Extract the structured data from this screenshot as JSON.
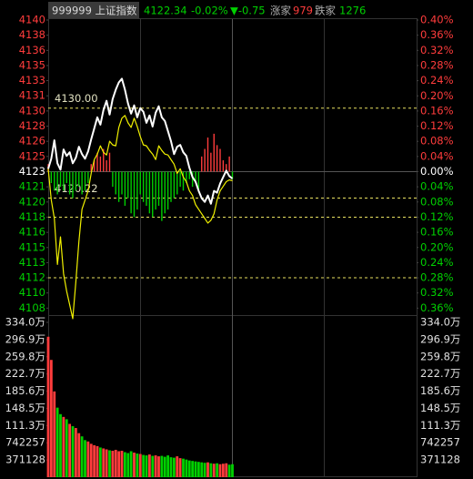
{
  "chart_data": {
    "type": "intraday",
    "header": {
      "title": "999999 上证指数",
      "last": 4122.34,
      "change_pct": "-0.02%",
      "change": "▼-0.75",
      "up_label": "涨家",
      "up_count": 979,
      "down_label": "跌家",
      "down_count": 1276
    },
    "xlim": [
      0,
      240
    ],
    "x": [
      0,
      2,
      4,
      6,
      8,
      10,
      12,
      14,
      16,
      18,
      20,
      22,
      24,
      26,
      28,
      30,
      32,
      34,
      36,
      38,
      40,
      42,
      44,
      46,
      48,
      50,
      52,
      54,
      56,
      58,
      60,
      62,
      64,
      66,
      68,
      70,
      72,
      74,
      76,
      78,
      80,
      82,
      84,
      86,
      88,
      90,
      92,
      94,
      96,
      98,
      100,
      102,
      104,
      106,
      108,
      110,
      112,
      114,
      116,
      118,
      120
    ],
    "ylim": [
      4106.6,
      4139.58
    ],
    "yticks": [
      {
        "value": 4139.58,
        "label": "4140"
      },
      {
        "value": 4137.93,
        "label": "4138"
      },
      {
        "value": 4136.28,
        "label": "4136"
      },
      {
        "value": 4134.63,
        "label": "4135"
      },
      {
        "value": 4132.99,
        "label": "4133"
      },
      {
        "value": 4131.34,
        "label": "4131"
      },
      {
        "value": 4129.69,
        "label": "4130"
      },
      {
        "value": 4128.04,
        "label": "4128"
      },
      {
        "value": 4126.39,
        "label": "4126"
      },
      {
        "value": 4124.74,
        "label": "4125"
      },
      {
        "value": 4123.09,
        "label": "4123"
      },
      {
        "value": 4121.44,
        "label": "4121"
      },
      {
        "value": 4119.79,
        "label": "4120"
      },
      {
        "value": 4118.14,
        "label": "4118"
      },
      {
        "value": 4116.49,
        "label": "4116"
      },
      {
        "value": 4114.84,
        "label": "4115"
      },
      {
        "value": 4113.19,
        "label": "4113"
      },
      {
        "value": 4111.55,
        "label": "4112"
      },
      {
        "value": 4109.9,
        "label": "4110"
      },
      {
        "value": 4108.25,
        "label": "4108"
      }
    ],
    "y2lim": [
      -0.4,
      0.4
    ],
    "y2ticks": [
      {
        "value": 0.4,
        "label": "0.40%"
      },
      {
        "value": 0.36,
        "label": "0.36%"
      },
      {
        "value": 0.32,
        "label": "0.32%"
      },
      {
        "value": 0.28,
        "label": "0.28%"
      },
      {
        "value": 0.24,
        "label": "0.24%"
      },
      {
        "value": 0.2,
        "label": "0.20%"
      },
      {
        "value": 0.16,
        "label": "0.16%"
      },
      {
        "value": 0.12,
        "label": "0.12%"
      },
      {
        "value": 0.08,
        "label": "0.08%"
      },
      {
        "value": 0.04,
        "label": "0.04%"
      },
      {
        "value": 0,
        "label": "0.00%"
      },
      {
        "value": -0.04,
        "label": "0.04%"
      },
      {
        "value": -0.08,
        "label": "0.08%"
      },
      {
        "value": -0.12,
        "label": "0.12%"
      },
      {
        "value": -0.16,
        "label": "0.16%"
      },
      {
        "value": -0.2,
        "label": "0.20%"
      },
      {
        "value": -0.24,
        "label": "0.24%"
      },
      {
        "value": -0.28,
        "label": "0.28%"
      },
      {
        "value": -0.32,
        "label": "0.32%"
      },
      {
        "value": -0.36,
        "label": "0.36%"
      }
    ],
    "up_color": "#ff3c3c",
    "down_color": "#00d000",
    "flat_color": "#ffffff",
    "series": [
      {
        "name": "price",
        "color": "#ffffff",
        "values": [
          4123.4,
          4124.5,
          4126.5,
          4124.0,
          4123.3,
          4125.5,
          4124.8,
          4125.2,
          4124.0,
          4124.6,
          4125.8,
          4125.0,
          4124.5,
          4125.3,
          4126.6,
          4127.8,
          4129.0,
          4128.2,
          4129.8,
          4130.8,
          4129.3,
          4131.0,
          4132.0,
          4132.8,
          4133.2,
          4132.0,
          4130.5,
          4129.4,
          4130.3,
          4129.0,
          4130.0,
          4129.6,
          4128.4,
          4129.2,
          4128.0,
          4129.5,
          4130.2,
          4129.0,
          4128.6,
          4127.5,
          4126.4,
          4125.0,
          4125.8,
          4126.0,
          4125.2,
          4124.8,
          4123.5,
          4122.5,
          4122.0,
          4121.0,
          4120.2,
          4119.8,
          4120.5,
          4119.6,
          4121.0,
          4120.8,
          4121.8,
          4122.5,
          4123.2,
          4122.6,
          4122.34
        ]
      },
      {
        "name": "average",
        "color": "#f0f000",
        "values": [
          4123.4,
          4120.0,
          4118.0,
          4113.0,
          4116.0,
          4112.0,
          4110.1,
          4108.6,
          4107.1,
          4111.1,
          4115.5,
          4119.0,
          4120.0,
          4121.0,
          4122.9,
          4124.4,
          4125.0,
          4125.9,
          4125.2,
          4124.9,
          4126.4,
          4126.0,
          4125.9,
          4127.9,
          4128.9,
          4129.2,
          4128.4,
          4127.9,
          4128.9,
          4128.0,
          4126.9,
          4126.0,
          4125.9,
          4125.4,
          4125.0,
          4124.4,
          4125.9,
          4125.4,
          4125.0,
          4124.9,
          4124.4,
          4123.9,
          4122.9,
          4123.4,
          4122.5,
          4122.0,
          4121.0,
          4120.5,
          4119.5,
          4119.0,
          4118.5,
          4118.0,
          4117.5,
          4117.8,
          4118.5,
          4120.0,
          4121.0,
          4121.5,
          4122.0,
          4122.2,
          4122.1
        ]
      }
    ],
    "breadth": [
      0.02,
      -0.03,
      -0.05,
      -0.06,
      -0.04,
      -0.05,
      -0.03,
      -0.06,
      -0.07,
      -0.05,
      -0.04,
      -0.06,
      -0.05,
      -0.03,
      0.02,
      0.03,
      0.05,
      0.04,
      0.06,
      0.03,
      0.05,
      -0.04,
      -0.06,
      -0.08,
      -0.06,
      -0.09,
      -0.07,
      -0.11,
      -0.12,
      -0.1,
      -0.06,
      -0.08,
      -0.09,
      -0.11,
      -0.12,
      -0.1,
      -0.09,
      -0.13,
      -0.11,
      -0.1,
      -0.08,
      -0.07,
      -0.06,
      -0.04,
      -0.05,
      -0.03,
      -0.02,
      -0.04,
      -0.03,
      -0.05,
      0.04,
      0.06,
      0.09,
      0.05,
      0.1,
      0.07,
      0.06,
      0.03,
      0.02,
      0.04,
      -0.02
    ],
    "reference_lines": [
      {
        "value": 4130.0,
        "label": "4130.00"
      },
      {
        "value": 4120.22,
        "label": "4120.22"
      },
      {
        "value": 4118.14
      },
      {
        "value": 4111.55
      }
    ],
    "reference_color": "#e8e060",
    "volume": {
      "ylim": [
        0,
        3340152
      ],
      "yticks": [
        {
          "value": 3340152,
          "label": "334.0万"
        },
        {
          "value": 2969024,
          "label": "296.9万"
        },
        {
          "value": 2597896,
          "label": "259.8万"
        },
        {
          "value": 2226768,
          "label": "222.7万"
        },
        {
          "value": 1855640,
          "label": "185.6万"
        },
        {
          "value": 1484512,
          "label": "148.5万"
        },
        {
          "value": 1113384,
          "label": "111.3万"
        },
        742257,
        371128
      ],
      "values": [
        3030000,
        2530000,
        1850000,
        1500000,
        1360000,
        1300000,
        1250000,
        1150000,
        1100000,
        1060000,
        950000,
        880000,
        800000,
        770000,
        720000,
        690000,
        670000,
        640000,
        620000,
        600000,
        580000,
        570000,
        590000,
        560000,
        570000,
        540000,
        520000,
        560000,
        530000,
        510000,
        500000,
        480000,
        470000,
        490000,
        460000,
        470000,
        450000,
        460000,
        440000,
        470000,
        430000,
        420000,
        450000,
        410000,
        400000,
        380000,
        360000,
        350000,
        340000,
        330000,
        320000,
        310000,
        320000,
        300000,
        290000,
        300000,
        280000,
        290000,
        300000,
        270000,
        280000
      ]
    }
  }
}
